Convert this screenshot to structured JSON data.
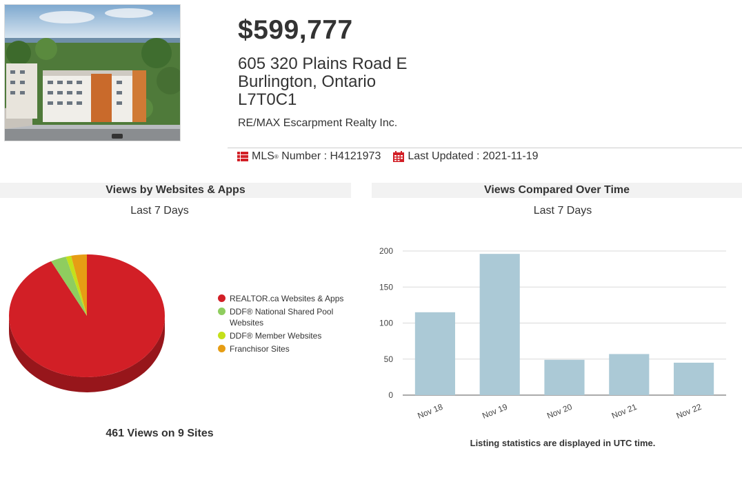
{
  "listing": {
    "price": "$599,777",
    "address_line1": "605 320 Plains Road E",
    "address_line2": "Burlington, Ontario",
    "address_line3": "L7T0C1",
    "brokerage": "RE/MAX Escarpment Realty Inc.",
    "mls_label": "MLS",
    "mls_reg": "®",
    "mls_suffix": " Number : H4121973",
    "last_updated": "Last Updated : 2021-11-19",
    "photo_icon": "listing-photo"
  },
  "panels": {
    "left_title": "Views by Websites & Apps",
    "left_subtitle": "Last 7 Days",
    "right_title": "Views Compared Over Time",
    "right_subtitle": "Last 7 Days",
    "views_total": "461 Views on 9 Sites",
    "utc_note": "Listing statistics are displayed in UTC time."
  },
  "colors": {
    "realtor": "#d21f26",
    "ddf_pool": "#8fcd5f",
    "ddf_member": "#c4e01a",
    "franchisor": "#e69d14",
    "bar": "#abc9d6"
  },
  "chart_data": [
    {
      "type": "pie",
      "title": "Views by Websites & Apps",
      "subtitle": "Last 7 Days",
      "legend": "right",
      "series": [
        {
          "name": "REALTOR.ca Websites & Apps",
          "value": 426
        },
        {
          "name": "DDF® National Shared Pool Websites",
          "value": 15
        },
        {
          "name": "DDF® Member Websites",
          "value": 5
        },
        {
          "name": "Franchisor Sites",
          "value": 15
        }
      ]
    },
    {
      "type": "bar",
      "title": "Views Compared Over Time",
      "subtitle": "Last 7 Days",
      "categories": [
        "Nov 18",
        "Nov 19",
        "Nov 20",
        "Nov 21",
        "Nov 22"
      ],
      "values": [
        115,
        196,
        49,
        57,
        45
      ],
      "ylim": [
        0,
        200
      ],
      "yticks": [
        0,
        50,
        100,
        150,
        200
      ],
      "grid": true
    }
  ]
}
